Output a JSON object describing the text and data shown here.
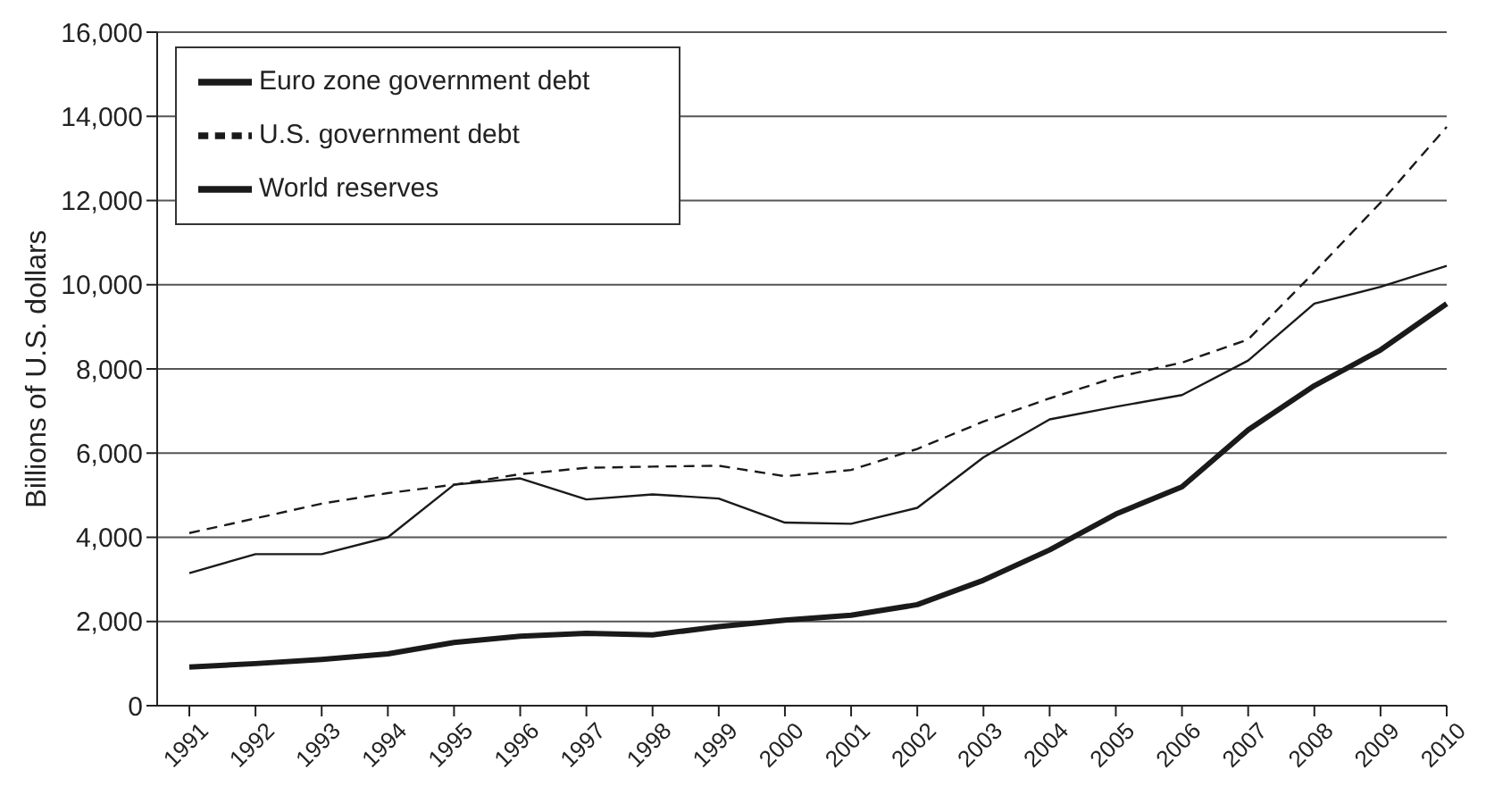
{
  "chart_data": {
    "type": "line",
    "ylabel": "Billions of U.S. dollars",
    "categories": [
      "1991",
      "1992",
      "1993",
      "1994",
      "1995",
      "1996",
      "1997",
      "1998",
      "1999",
      "2000",
      "2001",
      "2002",
      "2003",
      "2004",
      "2005",
      "2006",
      "2007",
      "2008",
      "2009",
      "2010"
    ],
    "series": [
      {
        "name": "Euro zone government debt",
        "color": "#1a1a1a",
        "line_style": "solid",
        "values": [
          3150,
          3600,
          3600,
          4000,
          5250,
          5400,
          4900,
          5020,
          4920,
          4350,
          4320,
          4700,
          5900,
          6800,
          7100,
          7380,
          8200,
          9550,
          9950,
          10450
        ]
      },
      {
        "name": "U.S. government debt",
        "color": "#1a1a1a",
        "line_style": "dashed",
        "values": [
          4100,
          4450,
          4800,
          5050,
          5250,
          5500,
          5650,
          5680,
          5700,
          5450,
          5600,
          6100,
          6750,
          7300,
          7800,
          8150,
          8700,
          10300,
          11950,
          13750
        ]
      },
      {
        "name": "World reserves",
        "color": "#1a1a1a",
        "line_style": "solid",
        "values": [
          920,
          1000,
          1100,
          1230,
          1500,
          1650,
          1720,
          1680,
          1880,
          2030,
          2150,
          2400,
          2980,
          3700,
          4550,
          5200,
          6550,
          7600,
          8450,
          9550
        ]
      }
    ],
    "ylim": [
      0,
      16000
    ],
    "yticks": [
      0,
      {
        "value": 2000,
        "label": "2,000"
      },
      {
        "value": 4000,
        "label": "4,000"
      },
      {
        "value": 6000,
        "label": "6,000"
      },
      {
        "value": 8000,
        "label": "8,000"
      },
      {
        "value": 10000,
        "label": "10,000"
      },
      {
        "value": 12000,
        "label": "12,000"
      },
      {
        "value": 14000,
        "label": "14,000"
      },
      {
        "value": 16000,
        "label": "16,000"
      }
    ],
    "grid": "y",
    "legend": "top left",
    "marker": "none"
  }
}
